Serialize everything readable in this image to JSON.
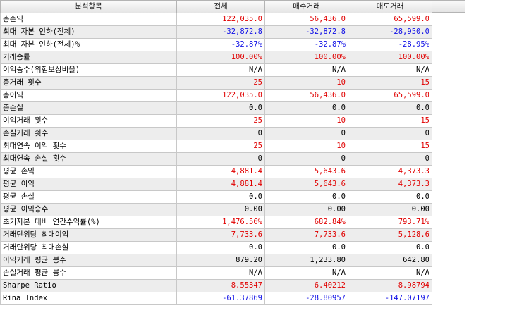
{
  "header": {
    "item": "분석항목",
    "all": "전체",
    "buy": "매수거래",
    "sell": "매도거래"
  },
  "colors": {
    "positive": "#e00000",
    "negative": "#1010e6",
    "neutral": "#000000",
    "shaded_row": "#ededed"
  },
  "rows": [
    {
      "label": "총손익",
      "all": "122,035.0",
      "buy": "56,436.0",
      "sell": "65,599.0",
      "tone": "red"
    },
    {
      "label": "최대 자본 인하(전체)",
      "all": "-32,872.8",
      "buy": "-32,872.8",
      "sell": "-28,950.0",
      "tone": "blue"
    },
    {
      "label": "최대 자본 인하(전체)%",
      "all": "-32.87%",
      "buy": "-32.87%",
      "sell": "-28.95%",
      "tone": "blue"
    },
    {
      "label": "거래승률",
      "all": "100.00%",
      "buy": "100.00%",
      "sell": "100.00%",
      "tone": "red"
    },
    {
      "label": "이익승수(위험보상비율)",
      "all": "N/A",
      "buy": "N/A",
      "sell": "N/A",
      "tone": "black"
    },
    {
      "label": "총거래 횟수",
      "all": "25",
      "buy": "10",
      "sell": "15",
      "tone": "red"
    },
    {
      "label": "총이익",
      "all": "122,035.0",
      "buy": "56,436.0",
      "sell": "65,599.0",
      "tone": "red"
    },
    {
      "label": "총손실",
      "all": "0.0",
      "buy": "0.0",
      "sell": "0.0",
      "tone": "black"
    },
    {
      "label": "이익거래 횟수",
      "all": "25",
      "buy": "10",
      "sell": "15",
      "tone": "red"
    },
    {
      "label": "손실거래 횟수",
      "all": "0",
      "buy": "0",
      "sell": "0",
      "tone": "black"
    },
    {
      "label": "최대연속 이익 횟수",
      "all": "25",
      "buy": "10",
      "sell": "15",
      "tone": "red"
    },
    {
      "label": "최대연속 손실 횟수",
      "all": "0",
      "buy": "0",
      "sell": "0",
      "tone": "black"
    },
    {
      "label": "평균 손익",
      "all": "4,881.4",
      "buy": "5,643.6",
      "sell": "4,373.3",
      "tone": "red"
    },
    {
      "label": "평균 이익",
      "all": "4,881.4",
      "buy": "5,643.6",
      "sell": "4,373.3",
      "tone": "red"
    },
    {
      "label": "평균 손실",
      "all": "0.0",
      "buy": "0.0",
      "sell": "0.0",
      "tone": "black"
    },
    {
      "label": "평균 이익승수",
      "all": "0.00",
      "buy": "0.00",
      "sell": "0.00",
      "tone": "black"
    },
    {
      "label": "초기자본 대비 연간수익률(%)",
      "all": "1,476.56%",
      "buy": "682.84%",
      "sell": "793.71%",
      "tone": "red"
    },
    {
      "label": "거래단위당 최대이익",
      "all": "7,733.6",
      "buy": "7,733.6",
      "sell": "5,128.6",
      "tone": "red"
    },
    {
      "label": "거래단위당 최대손실",
      "all": "0.0",
      "buy": "0.0",
      "sell": "0.0",
      "tone": "black"
    },
    {
      "label": "이익거래 평균 봉수",
      "all": "879.20",
      "buy": "1,233.80",
      "sell": "642.80",
      "tone": "black"
    },
    {
      "label": "손실거래 평균 봉수",
      "all": "N/A",
      "buy": "N/A",
      "sell": "N/A",
      "tone": "black"
    },
    {
      "label": "Sharpe Ratio",
      "all": "8.55347",
      "buy": "6.40212",
      "sell": "8.98794",
      "tone": "red"
    },
    {
      "label": "Rina Index",
      "all": "-61.37869",
      "buy": "-28.80957",
      "sell": "-147.07197",
      "tone": "blue"
    }
  ]
}
